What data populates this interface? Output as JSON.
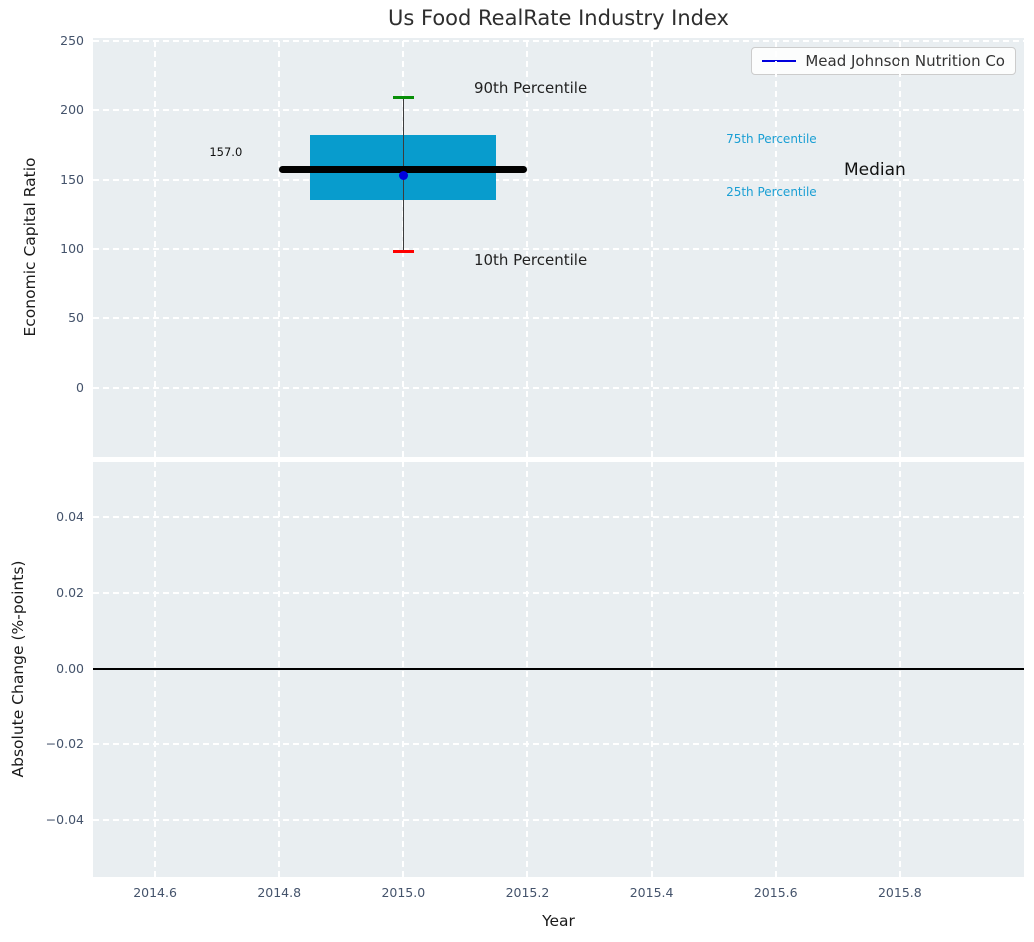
{
  "colors": {
    "plot_bg": "#e9eef1",
    "grid": "#ffffff",
    "tick_text": "#44536b",
    "box_fill": "#089ccd",
    "p90_cap": "#088f08",
    "p10_cap": "#fe0000",
    "median_line": "#000000",
    "company_marker": "#0000dd",
    "percentile_text": "#1a9fd4",
    "zero_line": "#000000"
  },
  "chart_data": [
    {
      "type": "box",
      "title": "Us Food RealRate Industry Index",
      "ylabel": "Economic Capital Ratio",
      "xlim": [
        2014.5,
        2016.0
      ],
      "ylim": [
        -50,
        252
      ],
      "grid": "on, white dashed",
      "xticks": {
        "values": [
          2014.6,
          2014.8,
          2015.0,
          2015.2,
          2015.4,
          2015.6,
          2015.8
        ],
        "labels": [
          "2014.6",
          "2014.8",
          "2015.0",
          "2015.2",
          "2015.4",
          "2015.6",
          "2015.8"
        ]
      },
      "yticks": {
        "values": [
          0,
          50,
          100,
          150,
          200,
          250
        ],
        "labels": [
          "0",
          "50",
          "100",
          "150",
          "200",
          "250"
        ]
      },
      "box": {
        "x": 2015.0,
        "p10": 98,
        "p25": 135,
        "median": 157,
        "p75": 182,
        "p90": 209,
        "box_x_left": 2014.85,
        "box_x_right": 2015.15,
        "median_line_x": [
          2014.8,
          2015.2
        ]
      },
      "company_point": {
        "label": "Mead Johnson Nutrition Co",
        "x": 2015.0,
        "y": 153
      },
      "legend": {
        "position": "upper right",
        "items": [
          {
            "label": "Mead Johnson Nutrition Co",
            "color": "#0000dd"
          }
        ]
      },
      "annotations": [
        {
          "name": "p90-label",
          "text": "90th Percentile",
          "x": 2015.205,
          "y": 216,
          "color": "#222222",
          "size": 15,
          "align": "center"
        },
        {
          "name": "p10-label",
          "text": "10th Percentile",
          "x": 2015.205,
          "y": 92,
          "color": "#222222",
          "size": 15,
          "align": "center"
        },
        {
          "name": "p75-label",
          "text": "75th Percentile",
          "x": 2015.52,
          "y": 179,
          "color": "#1a9fd4",
          "size": 12,
          "align": "left"
        },
        {
          "name": "p25-label",
          "text": "25th Percentile",
          "x": 2015.52,
          "y": 141,
          "color": "#1a9fd4",
          "size": 12,
          "align": "left"
        },
        {
          "name": "median-label",
          "text": "Median",
          "x": 2015.71,
          "y": 157,
          "color": "#111111",
          "size": 17,
          "align": "left"
        },
        {
          "name": "median-value-label",
          "text": "157.0",
          "x": 2014.714,
          "y": 170,
          "color": "#111111",
          "size": 11.5,
          "align": "center"
        }
      ]
    },
    {
      "type": "line",
      "ylabel": "Absolute Change (%-points)",
      "xlabel": "Year",
      "xlim": [
        2014.5,
        2016.0
      ],
      "ylim": [
        -0.055,
        0.0545
      ],
      "grid": "on, white dashed",
      "yticks": {
        "values": [
          0.04,
          0.02,
          0.0,
          -0.02,
          -0.04
        ],
        "labels": [
          "0.04",
          "0.02",
          "0.00",
          "−0.02",
          "−0.04"
        ]
      },
      "zero_line_y": 0.0
    }
  ]
}
